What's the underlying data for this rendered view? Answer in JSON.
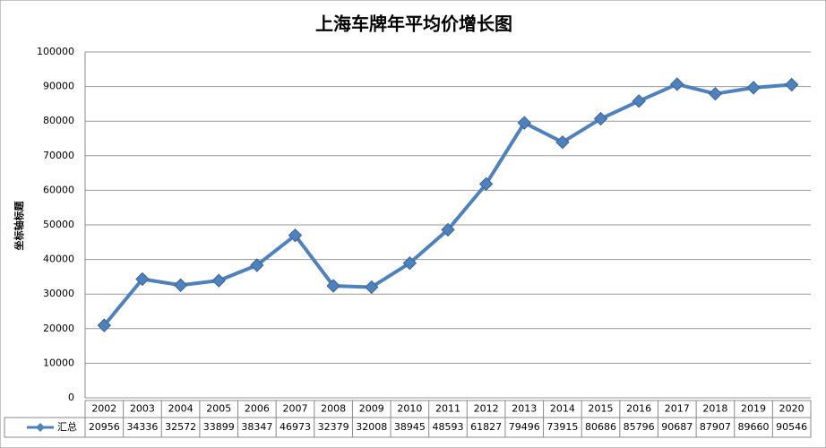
{
  "chart_data": {
    "type": "line",
    "title": "上海车牌年平均价增长图",
    "y_label": "坐标轴标题",
    "categories": [
      "2002",
      "2003",
      "2004",
      "2005",
      "2006",
      "2007",
      "2008",
      "2009",
      "2010",
      "2011",
      "2012",
      "2013",
      "2014",
      "2015",
      "2016",
      "2017",
      "2018",
      "2019",
      "2020"
    ],
    "series": [
      {
        "name": "汇总",
        "color": "#4f81bd",
        "values": [
          20956,
          34336,
          32572,
          33899,
          38347,
          46973,
          32379,
          32008,
          38945,
          48593,
          61827,
          79496,
          73915,
          80686,
          85796,
          90687,
          87907,
          89660,
          90546
        ]
      }
    ],
    "ylim": [
      0,
      100000
    ],
    "yticks": [
      0,
      10000,
      20000,
      30000,
      40000,
      50000,
      60000,
      70000,
      80000,
      90000,
      100000
    ],
    "grid": true
  }
}
